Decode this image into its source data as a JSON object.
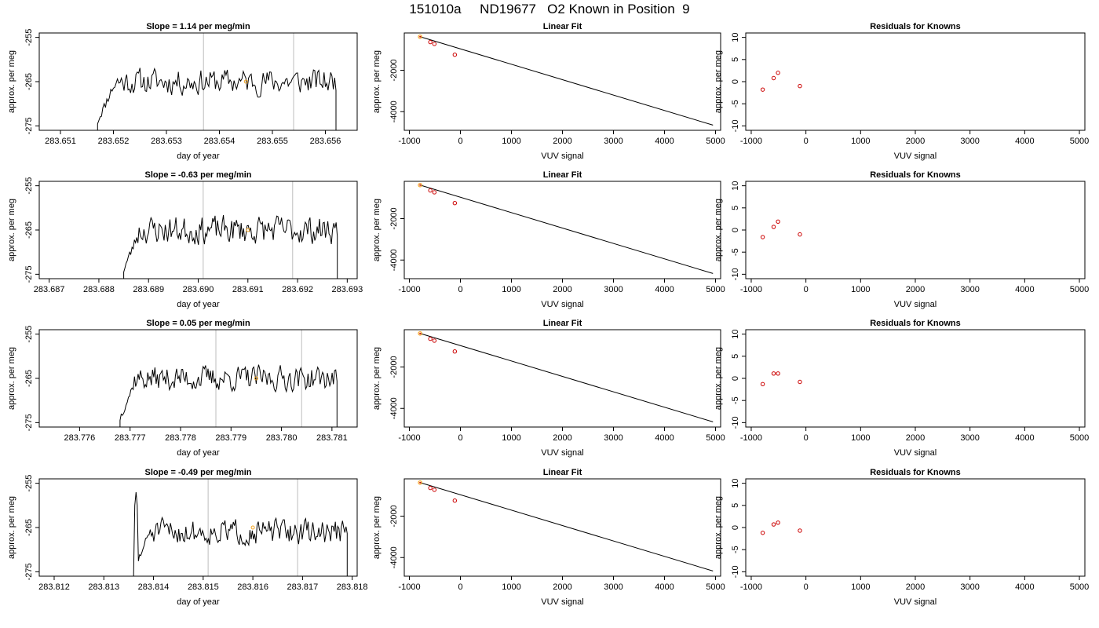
{
  "page_title": "151010a     ND19677   O2 Known in Position  9",
  "chart_data": [
    {
      "type": "line",
      "title": "Slope =  1.14  per meg/min",
      "xlabel": "day of year",
      "ylabel": "approx. per meg",
      "xlim": [
        283.6506,
        283.6566
      ],
      "ylim": [
        -276,
        -254
      ],
      "xticks": [
        "283.651",
        "283.652",
        "283.653",
        "283.654",
        "283.655",
        "283.656"
      ],
      "yticks": [
        "-255",
        "-265",
        "-275"
      ],
      "vlines": [
        283.6537,
        283.6554
      ],
      "marker": {
        "x": 283.6545,
        "y": -265
      },
      "trace": {
        "x_start": 283.6517,
        "x_end": 283.6562,
        "level": -265,
        "amplitude": 2.6
      },
      "seed": 11
    },
    {
      "type": "scatter",
      "title": "Linear Fit",
      "xlabel": "VUV signal",
      "ylabel": "approx. per meg",
      "xlim": [
        -1100,
        5100
      ],
      "ylim": [
        -4900,
        -200
      ],
      "xticks": [
        "-1000",
        "0",
        "1000",
        "2000",
        "3000",
        "4000",
        "5000"
      ],
      "yticks": [
        "-2000",
        "-4000"
      ],
      "points": [
        {
          "x": -590,
          "y": -640
        },
        {
          "x": -510,
          "y": -730
        },
        {
          "x": -110,
          "y": -1250
        }
      ],
      "highlight": {
        "x": -790,
        "y": -380
      },
      "line": [
        [
          -790,
          -380
        ],
        [
          4950,
          -4650
        ]
      ]
    },
    {
      "type": "scatter",
      "title": "Residuals for Knowns",
      "xlabel": "VUV signal",
      "ylabel": "approx. per meg",
      "xlim": [
        -1100,
        5100
      ],
      "ylim": [
        -11,
        11
      ],
      "xticks": [
        "-1000",
        "0",
        "1000",
        "2000",
        "3000",
        "4000",
        "5000"
      ],
      "yticks": [
        "10",
        "5",
        "0",
        "-5",
        "-10"
      ],
      "points": [
        {
          "x": -790,
          "y": -1.8
        },
        {
          "x": -590,
          "y": 0.8
        },
        {
          "x": -510,
          "y": 2.0
        },
        {
          "x": -110,
          "y": -1.0
        }
      ]
    },
    {
      "type": "line",
      "title": "Slope =  -0.63  per meg/min",
      "xlabel": "day of year",
      "ylabel": "approx. per meg",
      "xlim": [
        283.6868,
        283.6932
      ],
      "ylim": [
        -276,
        -254
      ],
      "xticks": [
        "283.687",
        "283.688",
        "283.689",
        "283.690",
        "283.691",
        "283.692",
        "283.693"
      ],
      "yticks": [
        "-255",
        "-265",
        "-275"
      ],
      "vlines": [
        283.6901,
        283.6919
      ],
      "marker": {
        "x": 283.691,
        "y": -265
      },
      "trace": {
        "x_start": 283.6885,
        "x_end": 283.6928,
        "level": -265,
        "amplitude": 2.8
      },
      "seed": 23
    },
    {
      "type": "scatter",
      "title": "Linear Fit",
      "xlabel": "VUV signal",
      "ylabel": "approx. per meg",
      "xlim": [
        -1100,
        5100
      ],
      "ylim": [
        -4900,
        -200
      ],
      "xticks": [
        "-1000",
        "0",
        "1000",
        "2000",
        "3000",
        "4000",
        "5000"
      ],
      "yticks": [
        "-2000",
        "-4000"
      ],
      "points": [
        {
          "x": -590,
          "y": -640
        },
        {
          "x": -510,
          "y": -730
        },
        {
          "x": -110,
          "y": -1250
        }
      ],
      "highlight": {
        "x": -790,
        "y": -380
      },
      "line": [
        [
          -790,
          -380
        ],
        [
          4950,
          -4650
        ]
      ]
    },
    {
      "type": "scatter",
      "title": "Residuals for Knowns",
      "xlabel": "VUV signal",
      "ylabel": "approx. per meg",
      "xlim": [
        -1100,
        5100
      ],
      "ylim": [
        -11,
        11
      ],
      "xticks": [
        "-1000",
        "0",
        "1000",
        "2000",
        "3000",
        "4000",
        "5000"
      ],
      "yticks": [
        "10",
        "5",
        "0",
        "-5",
        "-10"
      ],
      "points": [
        {
          "x": -790,
          "y": -1.6
        },
        {
          "x": -590,
          "y": 0.7
        },
        {
          "x": -510,
          "y": 1.9
        },
        {
          "x": -110,
          "y": -1.0
        }
      ]
    },
    {
      "type": "line",
      "title": "Slope =  0.05  per meg/min",
      "xlabel": "day of year",
      "ylabel": "approx. per meg",
      "xlim": [
        283.7752,
        283.7815
      ],
      "ylim": [
        -276,
        -254
      ],
      "xticks": [
        "283.776",
        "283.777",
        "283.778",
        "283.779",
        "283.780",
        "283.781"
      ],
      "yticks": [
        "-255",
        "-265",
        "-275"
      ],
      "vlines": [
        283.7787,
        283.7804
      ],
      "marker": {
        "x": 283.7795,
        "y": -265
      },
      "trace": {
        "x_start": 283.7768,
        "x_end": 283.7811,
        "level": -265,
        "amplitude": 2.5
      },
      "seed": 37
    },
    {
      "type": "scatter",
      "title": "Linear Fit",
      "xlabel": "VUV signal",
      "ylabel": "approx. per meg",
      "xlim": [
        -1100,
        5100
      ],
      "ylim": [
        -4900,
        -200
      ],
      "xticks": [
        "-1000",
        "0",
        "1000",
        "2000",
        "3000",
        "4000",
        "5000"
      ],
      "yticks": [
        "-2000",
        "-4000"
      ],
      "points": [
        {
          "x": -590,
          "y": -640
        },
        {
          "x": -510,
          "y": -730
        },
        {
          "x": -110,
          "y": -1250
        }
      ],
      "highlight": {
        "x": -790,
        "y": -380
      },
      "line": [
        [
          -790,
          -380
        ],
        [
          4950,
          -4650
        ]
      ]
    },
    {
      "type": "scatter",
      "title": "Residuals for Knowns",
      "xlabel": "VUV signal",
      "ylabel": "approx. per meg",
      "xlim": [
        -1100,
        5100
      ],
      "ylim": [
        -11,
        11
      ],
      "xticks": [
        "-1000",
        "0",
        "1000",
        "2000",
        "3000",
        "4000",
        "5000"
      ],
      "yticks": [
        "10",
        "5",
        "0",
        "-5",
        "-10"
      ],
      "points": [
        {
          "x": -790,
          "y": -1.3
        },
        {
          "x": -590,
          "y": 1.1
        },
        {
          "x": -510,
          "y": 1.1
        },
        {
          "x": -110,
          "y": -0.8
        }
      ]
    },
    {
      "type": "line",
      "title": "Slope =  -0.49  per meg/min",
      "xlabel": "day of year",
      "ylabel": "approx. per meg",
      "xlim": [
        283.8117,
        283.8181
      ],
      "ylim": [
        -276,
        -254
      ],
      "xticks": [
        "283.812",
        "283.813",
        "283.814",
        "283.815",
        "283.816",
        "283.817",
        "283.818"
      ],
      "yticks": [
        "-255",
        "-265",
        "-275"
      ],
      "vlines": [
        283.8151,
        283.8169
      ],
      "marker": {
        "x": 283.816,
        "y": -265
      },
      "trace": {
        "x_start": 283.8136,
        "x_end": 283.8179,
        "level": -266,
        "amplitude": 2.5,
        "spike": -257
      },
      "seed": 51
    },
    {
      "type": "scatter",
      "title": "Linear Fit",
      "xlabel": "VUV signal",
      "ylabel": "approx. per meg",
      "xlim": [
        -1100,
        5100
      ],
      "ylim": [
        -4900,
        -200
      ],
      "xticks": [
        "-1000",
        "0",
        "1000",
        "2000",
        "3000",
        "4000",
        "5000"
      ],
      "yticks": [
        "-2000",
        "-4000"
      ],
      "points": [
        {
          "x": -590,
          "y": -640
        },
        {
          "x": -510,
          "y": -730
        },
        {
          "x": -110,
          "y": -1250
        }
      ],
      "highlight": {
        "x": -790,
        "y": -380
      },
      "line": [
        [
          -790,
          -380
        ],
        [
          4950,
          -4650
        ]
      ]
    },
    {
      "type": "scatter",
      "title": "Residuals for Knowns",
      "xlabel": "VUV signal",
      "ylabel": "approx. per meg",
      "xlim": [
        -1100,
        5100
      ],
      "ylim": [
        -11,
        11
      ],
      "xticks": [
        "-1000",
        "0",
        "1000",
        "2000",
        "3000",
        "4000",
        "5000"
      ],
      "yticks": [
        "10",
        "5",
        "0",
        "-5",
        "-10"
      ],
      "points": [
        {
          "x": -790,
          "y": -1.2
        },
        {
          "x": -590,
          "y": 0.7
        },
        {
          "x": -510,
          "y": 1.1
        },
        {
          "x": -110,
          "y": -0.7
        }
      ]
    }
  ]
}
